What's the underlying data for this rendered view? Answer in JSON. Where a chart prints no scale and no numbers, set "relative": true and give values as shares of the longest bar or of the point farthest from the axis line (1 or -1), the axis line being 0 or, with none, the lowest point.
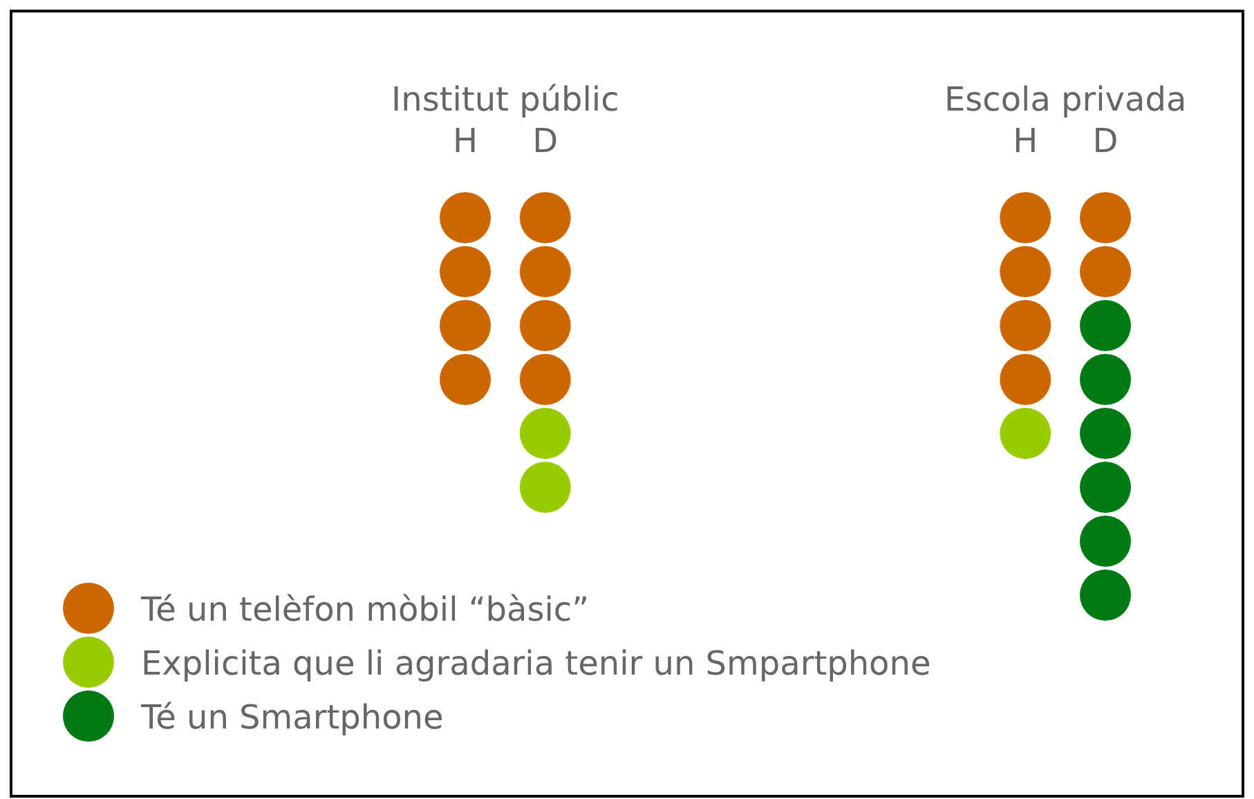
{
  "chart_data": {
    "type": "bar",
    "stacked": true,
    "relative": true,
    "legend": "bottom left",
    "categories": [
      "H",
      "D",
      null,
      null,
      null,
      null,
      null,
      "H",
      "D"
    ],
    "annotations": [
      "Institut públic",
      "Escola privada"
    ],
    "series": [
      {
        "name": "Té un telèfon mòbil “bàsic”",
        "color": "#cc6600",
        "values": [
          -0.5,
          -0.5,
          null,
          null,
          null,
          null,
          null,
          -0.5,
          -0.25
        ]
      },
      {
        "name": "Explicita que li agradaria tenir un Smpartphone",
        "color": "#99cc00",
        "values": [
          0,
          -0.25,
          null,
          null,
          null,
          null,
          null,
          -0.125,
          0
        ]
      },
      {
        "name": "Té un Smartphone",
        "color": "#007a12",
        "values": [
          0,
          0,
          null,
          null,
          null,
          null,
          null,
          0,
          -0.75
        ]
      }
    ]
  }
}
